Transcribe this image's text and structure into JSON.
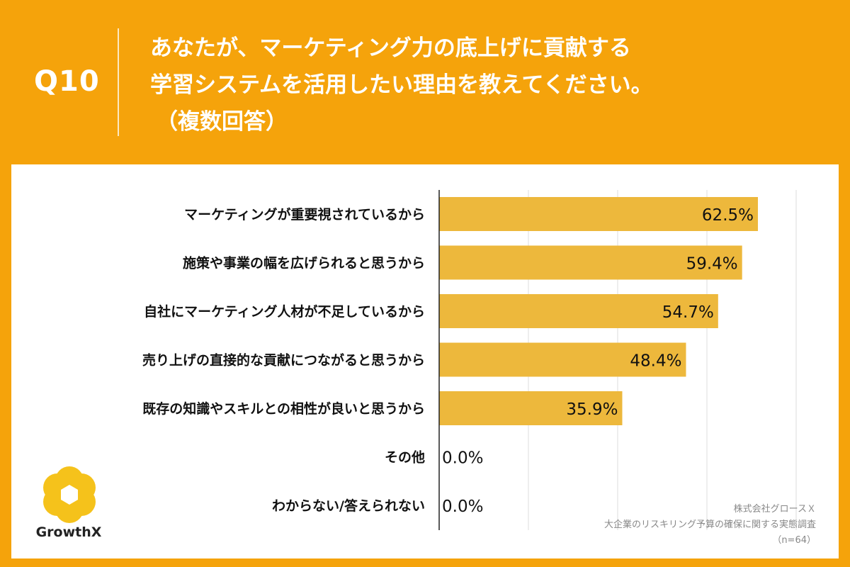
{
  "header": {
    "question_number": "Q10",
    "question_line1": "あなたが、マーケティング力の底上げに貢献する",
    "question_line2": "学習システムを活用したい理由を教えてください。",
    "question_line3": "（複数回答）"
  },
  "logo": {
    "name": "GrowthX",
    "icon": "growthx-hexagon-flower-icon"
  },
  "source": {
    "company": "株式会社グロースＸ",
    "survey": "大企業のリスキリング予算の確保に関する実態調査",
    "sample": "（n=64）"
  },
  "colors": {
    "background": "#F5A30B",
    "bar": "#EDB83C",
    "panel": "#FFFFFF",
    "text": "#111111",
    "grid": "#DDDDDD"
  },
  "chart_data": {
    "type": "bar",
    "orientation": "horizontal",
    "unit": "%",
    "categories": [
      "マーケティングが重要視されているから",
      "施策や事業の幅を広げられると思うから",
      "自社にマーケティング人材が不足しているから",
      "売り上げの直接的な貢献につながると思うから",
      "既存の知識やスキルとの相性が良いと思うから",
      "その他",
      "わからない/答えられない"
    ],
    "values": [
      62.5,
      59.4,
      54.7,
      48.4,
      35.9,
      0.0,
      0.0
    ],
    "labels": [
      "62.5%",
      "59.4%",
      "54.7%",
      "48.4%",
      "35.9%",
      "0.0%",
      "0.0%"
    ],
    "xlim": [
      0,
      70
    ],
    "grid": true,
    "tick_step": 17.5
  }
}
